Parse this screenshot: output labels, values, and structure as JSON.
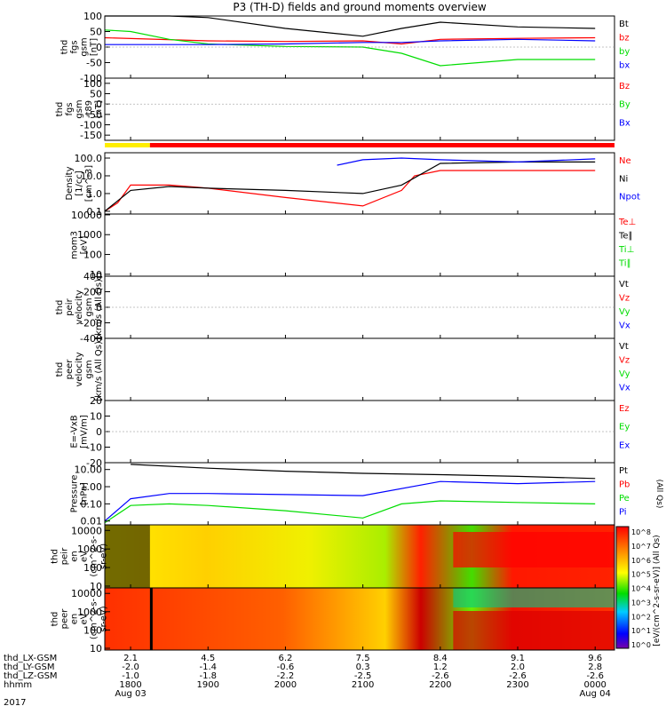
{
  "title": "P3 (TH-D) fields and ground moments overview",
  "colors": {
    "black": "#000000",
    "red": "#ff0000",
    "green": "#00dd00",
    "blue": "#0000ff"
  },
  "time_axis": {
    "labels": [
      "1800",
      "1900",
      "2000",
      "2100",
      "2200",
      "2300",
      "0000"
    ],
    "dates": [
      "Aug 03",
      "Aug 04"
    ],
    "year": "2017",
    "row_titles": [
      "thd_LX-GSM",
      "thd_LY-GSM",
      "thd_LZ-GSM",
      "hhmm"
    ],
    "lx": [
      "2.1",
      "4.5",
      "6.2",
      "7.5",
      "8.4",
      "9.1",
      "9.6"
    ],
    "ly": [
      "-2.0",
      "-1.4",
      "-0.6",
      "0.3",
      "1.2",
      "2.0",
      "2.8"
    ],
    "lz": [
      "-1.0",
      "-1.8",
      "-2.2",
      "-2.5",
      "-2.6",
      "-2.6",
      "-2.6"
    ]
  },
  "panels": [
    {
      "ylabel": [
        "thd",
        "fgs",
        "gsm",
        "[nT]"
      ],
      "ticks": [
        "100",
        "50",
        "0",
        "-50",
        "-100"
      ],
      "tickvals": [
        100,
        50,
        0,
        -50,
        -100
      ],
      "ylim": [
        -100,
        100
      ],
      "scale": "linear",
      "legend": [
        {
          "text": "Bt",
          "color": "#000000"
        },
        {
          "text": "bz",
          "color": "#ff0000"
        },
        {
          "text": "by",
          "color": "#00dd00"
        },
        {
          "text": "bx",
          "color": "#0000ff"
        }
      ]
    },
    {
      "ylabel": [
        "thd",
        "fgs",
        "gsm",
        "-t89",
        "[nT]"
      ],
      "ticks": [
        "100",
        "50",
        "0",
        "-50",
        "-100",
        "-150"
      ],
      "tickvals": [
        100,
        50,
        0,
        -50,
        -100,
        -150
      ],
      "ylim": [
        -175,
        125
      ],
      "scale": "linear",
      "legend": [
        {
          "text": "Bz",
          "color": "#ff0000"
        },
        {
          "text": "By",
          "color": "#00dd00"
        },
        {
          "text": "Bx",
          "color": "#0000ff"
        }
      ]
    },
    {
      "ylabel": [
        "Density",
        "[1/cc]",
        "[cm^-3]"
      ],
      "ticks": [
        "100.0",
        "10.0",
        "1.0",
        "0.1"
      ],
      "tickvals": [
        100,
        10,
        1,
        0.1
      ],
      "ylim": [
        0.07,
        200
      ],
      "scale": "log",
      "legend": [
        {
          "text": "Ne",
          "color": "#ff0000"
        },
        {
          "text": "Ni",
          "color": "#000000"
        },
        {
          "text": "Npot",
          "color": "#0000ff"
        }
      ]
    },
    {
      "ylabel": [
        "mom3",
        "[eV]"
      ],
      "ticks": [
        "10000",
        "1000",
        "100",
        "10"
      ],
      "tickvals": [
        10000,
        1000,
        100,
        10
      ],
      "ylim": [
        8,
        11000
      ],
      "scale": "log",
      "legend": [
        {
          "text": "Te⊥",
          "color": "#ff0000"
        },
        {
          "text": "Te∥",
          "color": "#000000"
        },
        {
          "text": "Ti⊥",
          "color": "#00dd00"
        },
        {
          "text": "Ti∥",
          "color": "#00dd00"
        }
      ]
    },
    {
      "ylabel": [
        "thd",
        "peir",
        "velocity",
        "gsm",
        "[km/s (All Qs)]"
      ],
      "ticks": [
        "400",
        "200",
        "0",
        "-200",
        "-400"
      ],
      "tickvals": [
        400,
        200,
        0,
        -200,
        -400
      ],
      "ylim": [
        -400,
        400
      ],
      "scale": "linear",
      "legend": [
        {
          "text": "Vt",
          "color": "#000000"
        },
        {
          "text": "Vz",
          "color": "#ff0000"
        },
        {
          "text": "Vy",
          "color": "#00dd00"
        },
        {
          "text": "Vx",
          "color": "#0000ff"
        }
      ]
    },
    {
      "ylabel": [
        "thd",
        "peer",
        "velocity",
        "gsm",
        "[km/s (All Qs)]"
      ],
      "ticks": [],
      "tickvals": [],
      "ylim": [
        -400,
        400
      ],
      "scale": "linear",
      "legend": [
        {
          "text": "Vt",
          "color": "#000000"
        },
        {
          "text": "Vz",
          "color": "#ff0000"
        },
        {
          "text": "Vy",
          "color": "#00dd00"
        },
        {
          "text": "Vx",
          "color": "#0000ff"
        }
      ]
    },
    {
      "ylabel": [
        "E=-VxB",
        "[mV/m]"
      ],
      "ticks": [
        "20",
        "10",
        "0",
        "-10",
        "-20"
      ],
      "tickvals": [
        20,
        10,
        0,
        -10,
        -20
      ],
      "ylim": [
        -20,
        20
      ],
      "scale": "linear",
      "legend": [
        {
          "text": "Ez",
          "color": "#ff0000"
        },
        {
          "text": "Ey",
          "color": "#00dd00"
        },
        {
          "text": "Ex",
          "color": "#0000ff"
        }
      ]
    },
    {
      "ylabel": [
        "Pressure",
        "[nPa]"
      ],
      "ticks": [
        "10.00",
        "1.00",
        "0.10",
        "0.01"
      ],
      "tickvals": [
        10,
        1,
        0.1,
        0.01
      ],
      "ylim": [
        0.006,
        25
      ],
      "scale": "log",
      "legend": [
        {
          "text": "Pt",
          "color": "#000000"
        },
        {
          "text": "Pb",
          "color": "#ff0000"
        },
        {
          "text": "Pe",
          "color": "#00dd00"
        },
        {
          "text": "Pi",
          "color": "#0000ff"
        }
      ],
      "side_note": "(All Qs)"
    },
    {
      "ylabel": [
        "thd",
        "peir",
        "en",
        "eV",
        "(cm^2-s-",
        "sr-eV)"
      ],
      "ticks": [
        "10000",
        "1000",
        "100",
        "10"
      ],
      "tickvals": [
        10000,
        1000,
        100,
        10
      ],
      "ylim": [
        8,
        20000
      ],
      "scale": "log"
    },
    {
      "ylabel": [
        "thd",
        "peer",
        "en",
        "eV",
        "(cm^2-s-",
        "sr-eV)"
      ],
      "ticks": [
        "10000",
        "1000",
        "100",
        "10"
      ],
      "tickvals": [
        10000,
        1000,
        100,
        10
      ],
      "ylim": [
        8,
        20000
      ],
      "scale": "log"
    }
  ],
  "colorbar": {
    "ticks": [
      "10^8",
      "10^7",
      "10^6",
      "10^5",
      "10^4",
      "10^3",
      "10^2",
      "10^1",
      "10^0"
    ],
    "label": "[eV/(cm^2-s-sr-eV)] (All Qs)"
  },
  "chart_data": {
    "type": "line",
    "x_range_hhmm": [
      "1740",
      "0015"
    ],
    "description": "THEMIS-D overview, 2017 Aug 03 18:00 - Aug 04 00:00",
    "series": [
      {
        "name": "Bt",
        "panel": 0,
        "x": [
          "1740",
          "1800",
          "1830",
          "1900",
          "2000",
          "2100",
          "2130",
          "2200",
          "2300",
          "0000"
        ],
        "y": [
          100,
          100,
          100,
          95,
          60,
          35,
          60,
          80,
          65,
          60
        ]
      },
      {
        "name": "bz",
        "panel": 0,
        "x": [
          "1740",
          "1900",
          "2000",
          "2100",
          "2130",
          "2200",
          "2300",
          "0000"
        ],
        "y": [
          30,
          20,
          18,
          20,
          10,
          25,
          28,
          30
        ]
      },
      {
        "name": "by",
        "panel": 0,
        "x": [
          "1740",
          "1800",
          "1830",
          "1900",
          "2000",
          "2100",
          "2130",
          "2200",
          "2300",
          "0000"
        ],
        "y": [
          55,
          50,
          25,
          10,
          2,
          0,
          -20,
          -60,
          -40,
          -40
        ]
      },
      {
        "name": "bx",
        "panel": 0,
        "x": [
          "1740",
          "1900",
          "2000",
          "2100",
          "2130",
          "2200",
          "2300",
          "0000"
        ],
        "y": [
          8,
          8,
          10,
          15,
          15,
          20,
          25,
          20
        ]
      },
      {
        "name": "Ne",
        "panel": 2,
        "x": [
          "1740",
          "1750",
          "1800",
          "1830",
          "1900",
          "2000",
          "2100",
          "2130",
          "2140",
          "2200",
          "2300",
          "0000"
        ],
        "y": [
          0.1,
          0.3,
          3,
          3,
          2,
          0.6,
          0.2,
          1.5,
          10,
          20,
          20,
          20
        ]
      },
      {
        "name": "Ni",
        "panel": 2,
        "x": [
          "1740",
          "1800",
          "1830",
          "1900",
          "2000",
          "2100",
          "2130",
          "2200",
          "2300",
          "0000"
        ],
        "y": [
          0.1,
          1.5,
          2.5,
          2,
          1.5,
          1,
          3,
          50,
          60,
          60
        ]
      },
      {
        "name": "Npot",
        "panel": 2,
        "x": [
          "2040",
          "2100",
          "2130",
          "2200",
          "2300",
          "0000"
        ],
        "y": [
          40,
          80,
          100,
          80,
          60,
          90
        ]
      },
      {
        "name": "Pt",
        "panel": 7,
        "x": [
          "1800",
          "1900",
          "2000",
          "2100",
          "2200",
          "2300",
          "0000"
        ],
        "y": [
          20,
          12,
          8,
          6,
          5,
          4,
          3
        ]
      },
      {
        "name": "Pi",
        "panel": 7,
        "x": [
          "1740",
          "1800",
          "1830",
          "1900",
          "2000",
          "2100",
          "2200",
          "2300",
          "0000"
        ],
        "y": [
          0.01,
          0.2,
          0.4,
          0.4,
          0.35,
          0.3,
          2,
          1.5,
          2
        ]
      },
      {
        "name": "Pe",
        "panel": 7,
        "x": [
          "1740",
          "1800",
          "1830",
          "1900",
          "2000",
          "2100",
          "2130",
          "2200",
          "2300",
          "0000"
        ],
        "y": [
          0.008,
          0.08,
          0.1,
          0.08,
          0.04,
          0.015,
          0.1,
          0.15,
          0.12,
          0.1
        ]
      }
    ]
  }
}
